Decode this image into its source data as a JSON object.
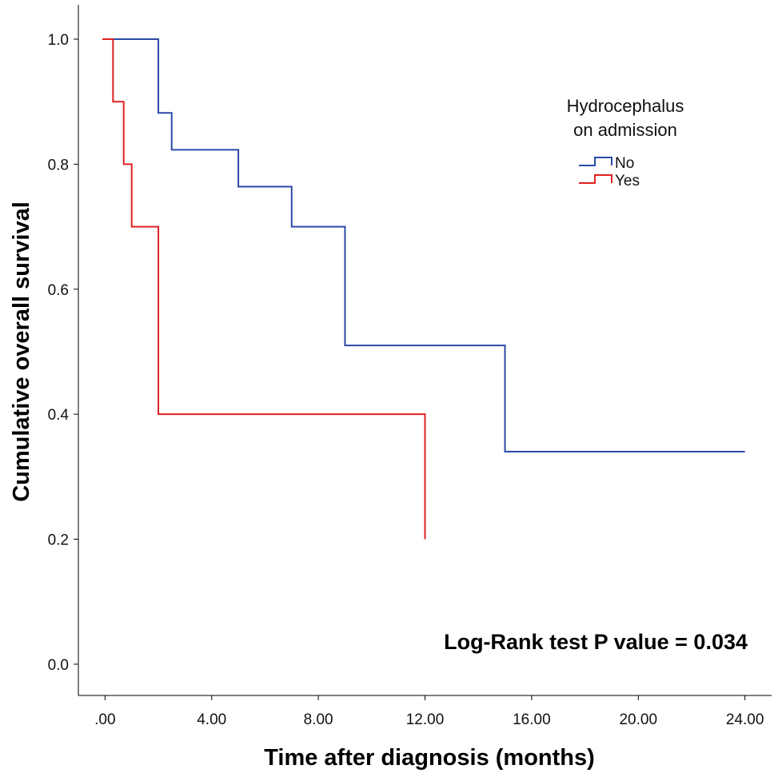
{
  "chart_data": {
    "type": "line",
    "subtype": "kaplan-meier step",
    "xlabel": "Time after diagnosis (months)",
    "ylabel": "Cumulative overall survival",
    "xlim": [
      -1,
      25
    ],
    "ylim": [
      -0.05,
      1.055
    ],
    "x_ticks": [
      0,
      4,
      8,
      12,
      16,
      20,
      24
    ],
    "x_tick_labels": [
      ".00",
      "4.00",
      "8.00",
      "12.00",
      "16.00",
      "20.00",
      "24.00"
    ],
    "y_ticks": [
      0.0,
      0.2,
      0.4,
      0.6,
      0.8,
      1.0
    ],
    "y_tick_labels": [
      "0.0",
      "0.2",
      "0.4",
      "0.6",
      "0.8",
      "1.0"
    ],
    "legend": {
      "title_lines": [
        "Hydrocephalus",
        "on admission"
      ],
      "position": "top-right"
    },
    "series": [
      {
        "name": "No",
        "color": "#2b4aa8",
        "steps": [
          {
            "x": 0.0,
            "y": 1.0
          },
          {
            "x": 2.0,
            "y": 0.882
          },
          {
            "x": 2.5,
            "y": 0.823
          },
          {
            "x": 5.0,
            "y": 0.764
          },
          {
            "x": 7.0,
            "y": 0.7
          },
          {
            "x": 9.0,
            "y": 0.51
          },
          {
            "x": 15.0,
            "y": 0.34
          }
        ],
        "end_x": 24.0
      },
      {
        "name": "Yes",
        "color": "#e02020",
        "steps": [
          {
            "x": 0.0,
            "y": 1.0
          },
          {
            "x": 0.3,
            "y": 0.9
          },
          {
            "x": 0.7,
            "y": 0.8
          },
          {
            "x": 1.0,
            "y": 0.7
          },
          {
            "x": 2.0,
            "y": 0.4
          },
          {
            "x": 12.0,
            "y": 0.2
          }
        ],
        "end_x": 12.0
      }
    ],
    "annotation": "Log-Rank test P value = 0.034"
  }
}
